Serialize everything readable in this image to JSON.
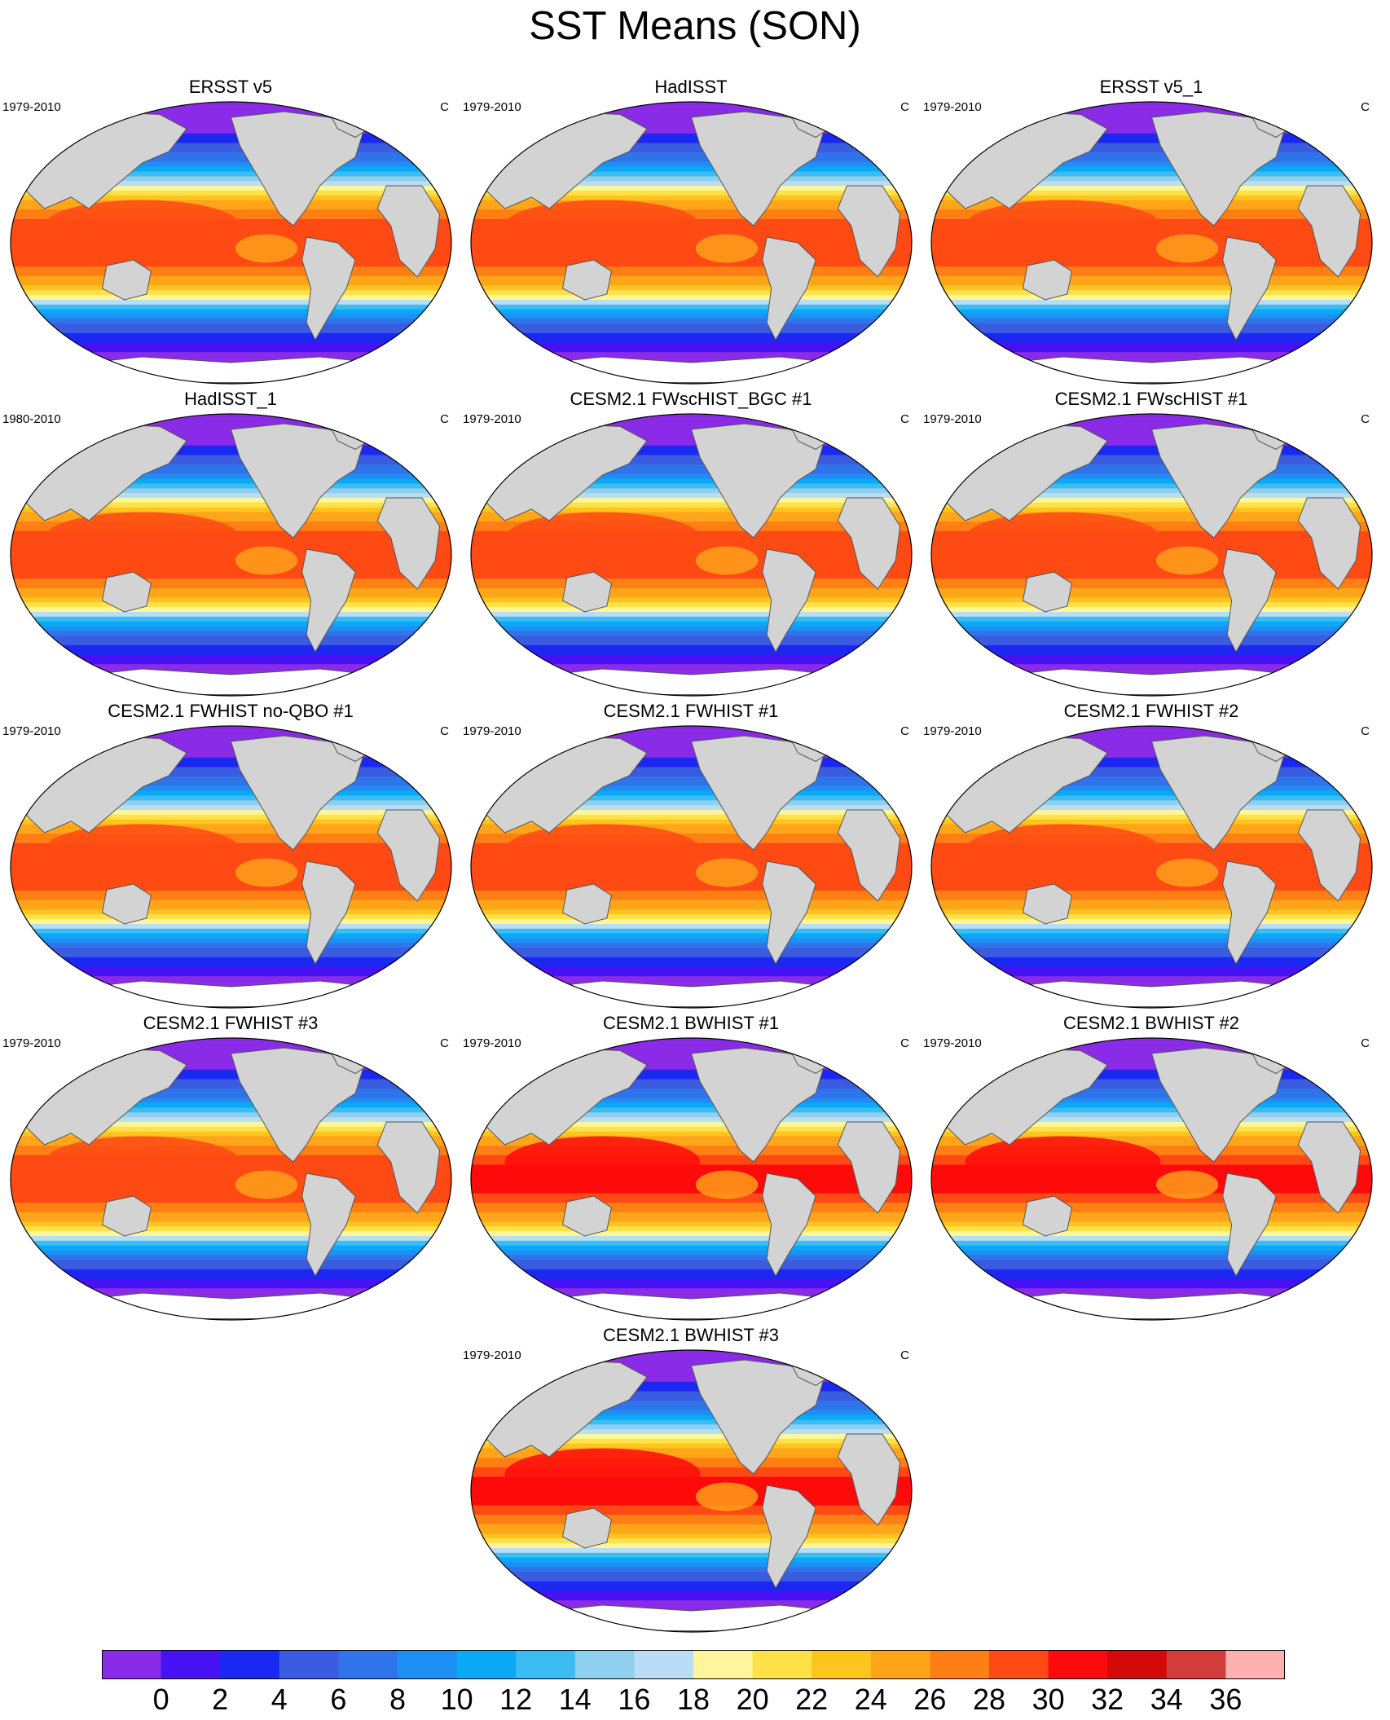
{
  "figure": {
    "title": "SST Means (SON)"
  },
  "panels": [
    {
      "title": "ERSST v5",
      "years": "1979-2010",
      "unit": "C"
    },
    {
      "title": "HadISST",
      "years": "1979-2010",
      "unit": "C"
    },
    {
      "title": "ERSST v5_1",
      "years": "1979-2010",
      "unit": "C"
    },
    {
      "title": "HadISST_1",
      "years": "1980-2010",
      "unit": "C"
    },
    {
      "title": "CESM2.1 FWscHIST_BGC #1",
      "years": "1979-2010",
      "unit": "C"
    },
    {
      "title": "CESM2.1 FWscHIST #1",
      "years": "1979-2010",
      "unit": "C"
    },
    {
      "title": "CESM2.1 FWHIST no-QBO #1",
      "years": "1979-2010",
      "unit": "C"
    },
    {
      "title": "CESM2.1 FWHIST #1",
      "years": "1979-2010",
      "unit": "C"
    },
    {
      "title": "CESM2.1 FWHIST #2",
      "years": "1979-2010",
      "unit": "C"
    },
    {
      "title": "CESM2.1 FWHIST #3",
      "years": "1979-2010",
      "unit": "C"
    },
    {
      "title": "CESM2.1 BWHIST #1",
      "years": "1979-2010",
      "unit": "C"
    },
    {
      "title": "CESM2.1 BWHIST #2",
      "years": "1979-2010",
      "unit": "C"
    },
    {
      "title": "CESM2.1 BWHIST #3",
      "years": "1979-2010",
      "unit": "C"
    }
  ],
  "colorbar": {
    "labels": [
      "0",
      "2",
      "4",
      "6",
      "8",
      "10",
      "12",
      "14",
      "16",
      "18",
      "20",
      "22",
      "24",
      "26",
      "28",
      "30",
      "32",
      "34",
      "36"
    ],
    "colors": [
      "#8a2be8",
      "#4612f4",
      "#1a28f2",
      "#3b5ce0",
      "#2f74ea",
      "#1f8ff5",
      "#0aa9f6",
      "#3bbcf2",
      "#8fd0ef",
      "#b8ddf4",
      "#fff59a",
      "#ffe14a",
      "#ffc51f",
      "#ffa51a",
      "#ff7f14",
      "#ff4a14",
      "#ff0a0a",
      "#d40a0a",
      "#d23c3c",
      "#ffb0b0"
    ]
  },
  "map": {
    "land_color": "#d3d3d3",
    "ice_color": "#ffffff",
    "outline_color": "#555555"
  }
}
